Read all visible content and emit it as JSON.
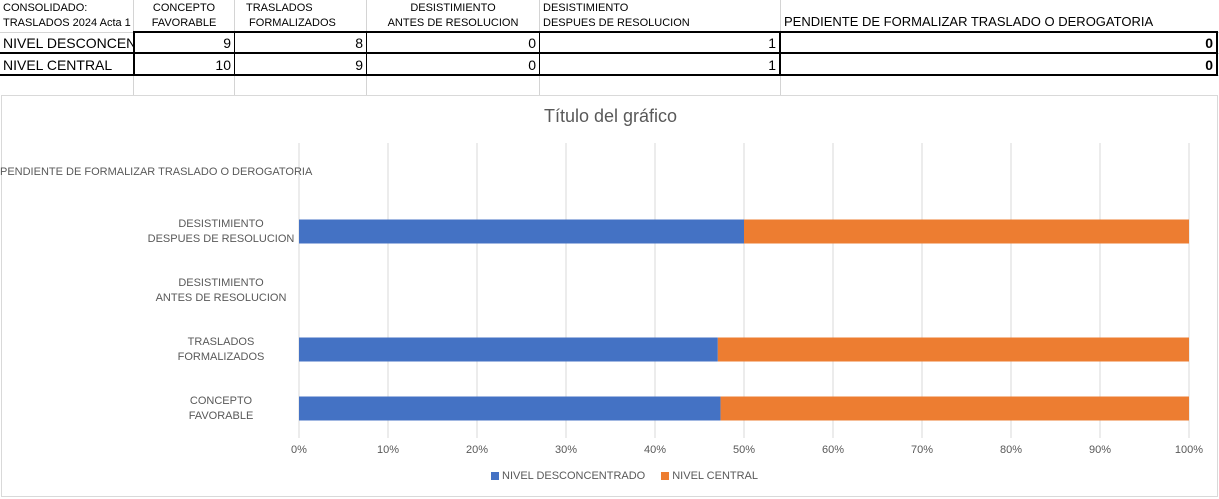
{
  "sheet": {
    "corner_line1": "CONSOLIDADO:",
    "corner_line2": "TRASLADOS 2024 Acta 1",
    "headers": [
      "CONCEPTO\nFAVORABLE",
      "TRASLADOS\n FORMALIZADOS",
      "DESISTIMIENTO\nANTES DE RESOLUCION",
      "DESISTIMIENTO\nDESPUES DE RESOLUCION",
      "PENDIENTE DE FORMALIZAR TRASLADO O DEROGATORIA"
    ],
    "rows": [
      {
        "label": "NIVEL DESCONCENTR",
        "values": [
          "9",
          "8",
          "0",
          "1",
          "0"
        ]
      },
      {
        "label": "NIVEL CENTRAL",
        "values": [
          "10",
          "9",
          "0",
          "1",
          "0"
        ]
      }
    ]
  },
  "chart_data": {
    "type": "bar",
    "orientation": "horizontal",
    "stacking": "percent",
    "title": "Título del gráfico",
    "categories": [
      "CONCEPTO\nFAVORABLE",
      "TRASLADOS\nFORMALIZADOS",
      "DESISTIMIENTO\nANTES DE RESOLUCION",
      "DESISTIMIENTO\nDESPUES DE RESOLUCION",
      "PENDIENTE DE FORMALIZAR TRASLADO O DEROGATORIA"
    ],
    "series": [
      {
        "name": "NIVEL DESCONCENTRADO",
        "values": [
          9,
          8,
          0,
          1,
          0
        ],
        "color": "#4472c4"
      },
      {
        "name": "NIVEL CENTRAL",
        "values": [
          10,
          9,
          0,
          1,
          0
        ],
        "color": "#ed7d31"
      }
    ],
    "xlim": [
      0,
      100
    ],
    "xticks": [
      "0%",
      "10%",
      "20%",
      "30%",
      "40%",
      "50%",
      "60%",
      "70%",
      "80%",
      "90%",
      "100%"
    ],
    "grid": true,
    "legend_position": "bottom"
  }
}
